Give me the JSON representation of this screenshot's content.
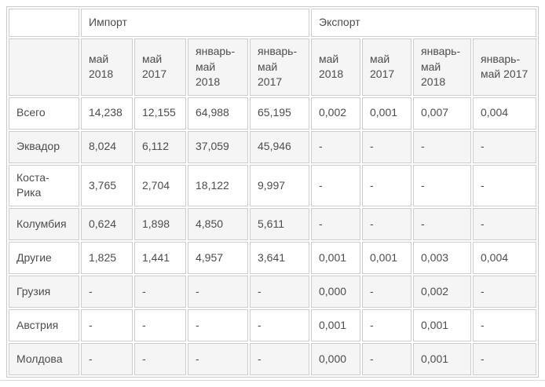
{
  "colors": {
    "page_bg": "#ffffff",
    "table_border": "#c9c9c9",
    "cell_border": "#cdcdcd",
    "stripe_bg": "#f5f5f5",
    "cell_bg": "#ffffff",
    "text": "#4d4d4d",
    "bottom_rule": "#dcdcdc"
  },
  "chart_data": {
    "type": "table",
    "column_groups": [
      {
        "label": "",
        "span": 1
      },
      {
        "label": "Импорт",
        "span": 4
      },
      {
        "label": "Экспорт",
        "span": 4
      }
    ],
    "columns": [
      "май 2018",
      "май 2017",
      "январь-май 2018",
      "январь-май 2017",
      "май 2018",
      "май 2017",
      "январь-май 2018",
      "январь-май 2017"
    ],
    "rows": [
      {
        "label": "Всего",
        "values": [
          "14,238",
          "12,155",
          "64,988",
          "65,195",
          "0,002",
          "0,001",
          "0,007",
          "0,004"
        ]
      },
      {
        "label": "Эквадор",
        "values": [
          "8,024",
          "6,112",
          "37,059",
          "45,946",
          "-",
          "-",
          "-",
          "-"
        ]
      },
      {
        "label": "Коста-Рика",
        "values": [
          "3,765",
          "2,704",
          "18,122",
          "9,997",
          "-",
          "-",
          "-",
          "-"
        ]
      },
      {
        "label": "Колумбия",
        "values": [
          "0,624",
          "1,898",
          "4,850",
          "5,611",
          "-",
          "-",
          "-",
          "-"
        ]
      },
      {
        "label": "Другие",
        "values": [
          "1,825",
          "1,441",
          "4,957",
          "3,641",
          "0,001",
          "0,001",
          "0,003",
          "0,004"
        ]
      },
      {
        "label": "Грузия",
        "values": [
          "-",
          "-",
          "-",
          "-",
          "0,000",
          "-",
          "0,002",
          "-"
        ]
      },
      {
        "label": "Австрия",
        "values": [
          "-",
          "-",
          "-",
          "-",
          "0,001",
          "-",
          "0,001",
          "-"
        ]
      },
      {
        "label": "Молдова",
        "values": [
          "-",
          "-",
          "-",
          "-",
          "0,000",
          "-",
          "0,001",
          "-"
        ]
      }
    ],
    "empty_value": "-",
    "decimal_separator": ","
  }
}
